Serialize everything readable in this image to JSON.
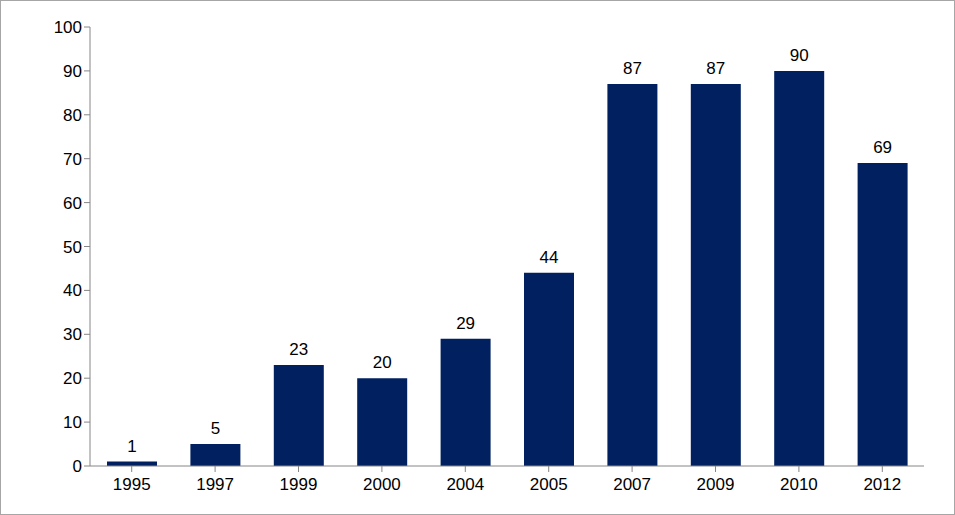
{
  "chart_data": {
    "type": "bar",
    "categories": [
      "1995",
      "1997",
      "1999",
      "2000",
      "2004",
      "2005",
      "2007",
      "2009",
      "2010",
      "2012"
    ],
    "values": [
      1,
      5,
      23,
      20,
      29,
      44,
      87,
      87,
      90,
      69
    ],
    "color": "#002060",
    "ylim": [
      0,
      100
    ],
    "yticks": [
      0,
      10,
      20,
      30,
      40,
      50,
      60,
      70,
      80,
      90,
      100
    ],
    "grid": false,
    "data_labels": true
  }
}
